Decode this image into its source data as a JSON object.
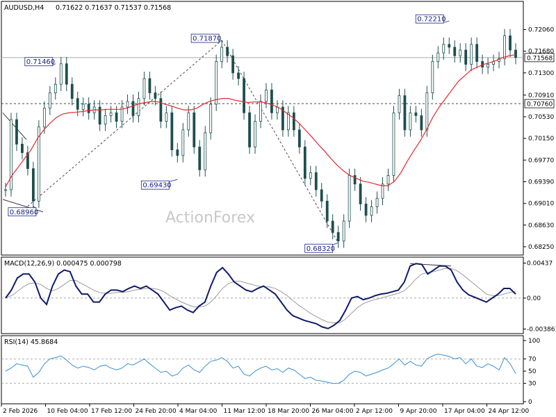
{
  "header": {
    "symbol": "AUDUSD,H4",
    "ohlc": "0.71622 0.71637 0.71537 0.71568"
  },
  "watermark": "ActionForex",
  "colors": {
    "candle": "#1f4e4e",
    "ma": "#e0292f",
    "macd": "#0d1a6b",
    "signal": "#9a9a9a",
    "rsi": "#3a8fd0",
    "annotation": "#1a237e",
    "dashed_line": "#444444"
  },
  "chart_data": [
    {
      "type": "line",
      "panel": "price",
      "title": "AUDUSD,H4",
      "y_ticks": [
        "0.72060",
        "0.71680",
        "0.71300",
        "0.70910",
        "0.70530",
        "0.70150",
        "0.69770",
        "0.69390",
        "0.69010",
        "0.68630",
        "0.68250"
      ],
      "ylim": [
        0.6825,
        0.7231
      ],
      "x_ticks": [
        "2 Feb 2026",
        "10 Feb 04:00",
        "17 Feb 12:00",
        "24 Feb 20:00",
        "4 Mar 04:00",
        "11 Mar 12:00",
        "18 Mar 20:00",
        "26 Mar 04:00",
        "2 Apr 12:00",
        "9 Apr 20:00",
        "17 Apr 04:00",
        "24 Apr 12:00"
      ],
      "series": [
        {
          "kind": "close",
          "values": [
            0.6925,
            0.7048,
            0.7005,
            0.699,
            0.6962,
            0.6905,
            0.7035,
            0.7068,
            0.7095,
            0.711,
            0.7146,
            0.711,
            0.7085,
            0.7066,
            0.7075,
            0.706,
            0.707,
            0.704,
            0.7055,
            0.706,
            0.7045,
            0.707,
            0.708,
            0.7055,
            0.7085,
            0.712,
            0.7095,
            0.7085,
            0.7045,
            0.706,
            0.6995,
            0.6985,
            0.703,
            0.706,
            0.7,
            0.696,
            0.7025,
            0.7075,
            0.715,
            0.7175,
            0.716,
            0.713,
            0.712,
            0.706,
            0.7,
            0.7045,
            0.708,
            0.71,
            0.706,
            0.707,
            0.703,
            0.706,
            0.703,
            0.7,
            0.6945,
            0.6955,
            0.6925,
            0.6905,
            0.687,
            0.685,
            0.6835,
            0.687,
            0.695,
            0.6935,
            0.69,
            0.688,
            0.6895,
            0.691,
            0.6935,
            0.695,
            0.706,
            0.709,
            0.703,
            0.706,
            0.7055,
            0.703,
            0.7095,
            0.715,
            0.7165,
            0.718,
            0.7175,
            0.716,
            0.717,
            0.7145,
            0.718,
            0.715,
            0.714,
            0.7145,
            0.715,
            0.7155,
            0.7195,
            0.717,
            0.7157
          ]
        },
        {
          "kind": "moving_average",
          "values": [
            0.693,
            0.695,
            0.6965,
            0.698,
            0.6995,
            0.7015,
            0.703,
            0.7042,
            0.7052,
            0.7058,
            0.706,
            0.7061,
            0.7062,
            0.7064,
            0.7065,
            0.7065,
            0.7066,
            0.7066,
            0.7066,
            0.7068,
            0.7072,
            0.7076,
            0.7078,
            0.708,
            0.7079,
            0.7075,
            0.7072,
            0.7068,
            0.7065,
            0.7065,
            0.7068,
            0.7075,
            0.708,
            0.7083,
            0.7085,
            0.7085,
            0.7082,
            0.708,
            0.7078,
            0.7079,
            0.7079,
            0.7077,
            0.7073,
            0.7068,
            0.706,
            0.7052,
            0.7042,
            0.703,
            0.7018,
            0.7005,
            0.6993,
            0.698,
            0.6968,
            0.6958,
            0.695,
            0.6945,
            0.694,
            0.6938,
            0.6935,
            0.6932,
            0.6932,
            0.694,
            0.6955,
            0.6975,
            0.6993,
            0.701,
            0.703,
            0.7052,
            0.707,
            0.7085,
            0.71,
            0.7115,
            0.7125,
            0.7135,
            0.714,
            0.7145,
            0.7148,
            0.7152,
            0.7157,
            0.716,
            0.7162
          ]
        }
      ],
      "horizontal_lines": [
        {
          "label": "0.71568",
          "value": 0.71568,
          "style": "solid"
        },
        {
          "label": "0.70760",
          "value": 0.7076,
          "style": "dashed"
        }
      ],
      "annotations": [
        {
          "label": "0.71460",
          "value": 0.7146
        },
        {
          "label": "0.71870",
          "value": 0.7187
        },
        {
          "label": "0.72210",
          "value": 0.7221
        },
        {
          "label": "0.69430",
          "value": 0.6943
        },
        {
          "label": "0.68960",
          "value": 0.6896
        },
        {
          "label": "0.68320",
          "value": 0.6832
        }
      ]
    },
    {
      "type": "line",
      "panel": "macd",
      "title": "MACD(12,26,9) 0.000475 0.000798",
      "y_ticks": [
        "0.00437",
        "0.00",
        "-0.003861"
      ],
      "ylim": [
        -0.004,
        0.0045
      ],
      "series": [
        {
          "kind": "macd",
          "values": [
            0.0,
            0.001,
            0.0025,
            0.003,
            0.003,
            0.002,
            0.0,
            -0.0008,
            0.0015,
            0.003,
            0.0035,
            0.0033,
            0.0015,
            0.0005,
            0.0005,
            -0.0005,
            -0.0005,
            0.0005,
            0.001,
            0.001,
            0.0008,
            0.0012,
            0.0015,
            0.0012,
            0.0015,
            0.001,
            0.0005,
            -0.0005,
            -0.0015,
            -0.0012,
            -0.001,
            -0.0015,
            -0.0018,
            -0.001,
            -0.0005,
            0.0015,
            0.0032,
            0.0038,
            0.003,
            0.002,
            0.0015,
            0.001,
            0.0008,
            0.0012,
            0.0015,
            0.001,
            0.0005,
            -0.0005,
            -0.0015,
            -0.0022,
            -0.0025,
            -0.0028,
            -0.003,
            -0.0032,
            -0.0036,
            -0.0038,
            -0.0034,
            -0.0028,
            -0.0015,
            0.0,
            0.0002,
            -0.0002,
            0.0,
            0.0003,
            0.0005,
            0.0006,
            0.0008,
            0.001,
            0.002,
            0.004,
            0.0043,
            0.0042,
            0.003,
            0.0035,
            0.004,
            0.004,
            0.0035,
            0.002,
            0.001,
            0.0004,
            0.0001,
            -0.0002,
            -0.0005,
            0.0,
            0.0005,
            0.0012,
            0.0012,
            0.0005
          ]
        },
        {
          "kind": "signal",
          "values": [
            0.0,
            0.0003,
            0.0008,
            0.0014,
            0.0018,
            0.0019,
            0.0017,
            0.0012,
            0.0009,
            0.0012,
            0.0017,
            0.0022,
            0.0022,
            0.0018,
            0.0014,
            0.001,
            0.0007,
            0.0006,
            0.0006,
            0.0007,
            0.0007,
            0.0008,
            0.001,
            0.0011,
            0.0012,
            0.0012,
            0.0011,
            0.0008,
            0.0003,
            -0.0001,
            -0.0005,
            -0.0008,
            -0.0011,
            -0.0011,
            -0.001,
            -0.0005,
            0.0003,
            0.0012,
            0.0018,
            0.0021,
            0.0021,
            0.0019,
            0.0017,
            0.0015,
            0.0014,
            0.0014,
            0.0012,
            0.0008,
            0.0003,
            -0.0003,
            -0.0009,
            -0.0014,
            -0.0019,
            -0.0023,
            -0.0027,
            -0.003,
            -0.0031,
            -0.0031,
            -0.0026,
            -0.0019,
            -0.0012,
            -0.0007,
            -0.0004,
            -0.0002,
            0.0,
            0.0002,
            0.0004,
            0.0006,
            0.0009,
            0.0016,
            0.0024,
            0.003,
            0.0032,
            0.0033,
            0.0035,
            0.0037,
            0.0037,
            0.0034,
            0.0029,
            0.0023,
            0.0017,
            0.0011,
            0.0005,
            0.0003,
            0.0003,
            0.0005,
            0.0007,
            0.0008
          ]
        }
      ]
    },
    {
      "type": "line",
      "panel": "rsi",
      "title": "RSI(14) 45.8684",
      "y_ticks": [
        "100",
        "70",
        "50",
        "30",
        "0"
      ],
      "ylim": [
        0,
        100
      ],
      "reference_lines": [
        70,
        30
      ],
      "series": [
        {
          "kind": "rsi",
          "values": [
            50,
            55,
            62,
            60,
            58,
            40,
            48,
            62,
            70,
            72,
            75,
            68,
            60,
            55,
            58,
            56,
            52,
            58,
            60,
            55,
            52,
            55,
            62,
            60,
            65,
            70,
            62,
            55,
            48,
            50,
            42,
            45,
            55,
            60,
            52,
            48,
            58,
            66,
            68,
            72,
            66,
            55,
            58,
            45,
            42,
            50,
            55,
            58,
            52,
            54,
            48,
            55,
            52,
            45,
            38,
            40,
            35,
            34,
            32,
            30,
            30,
            35,
            45,
            50,
            48,
            42,
            45,
            48,
            52,
            55,
            62,
            70,
            60,
            66,
            60,
            58,
            70,
            75,
            78,
            76,
            74,
            70,
            72,
            62,
            70,
            58,
            56,
            62,
            58,
            52,
            72,
            62,
            46
          ]
        }
      ]
    }
  ]
}
